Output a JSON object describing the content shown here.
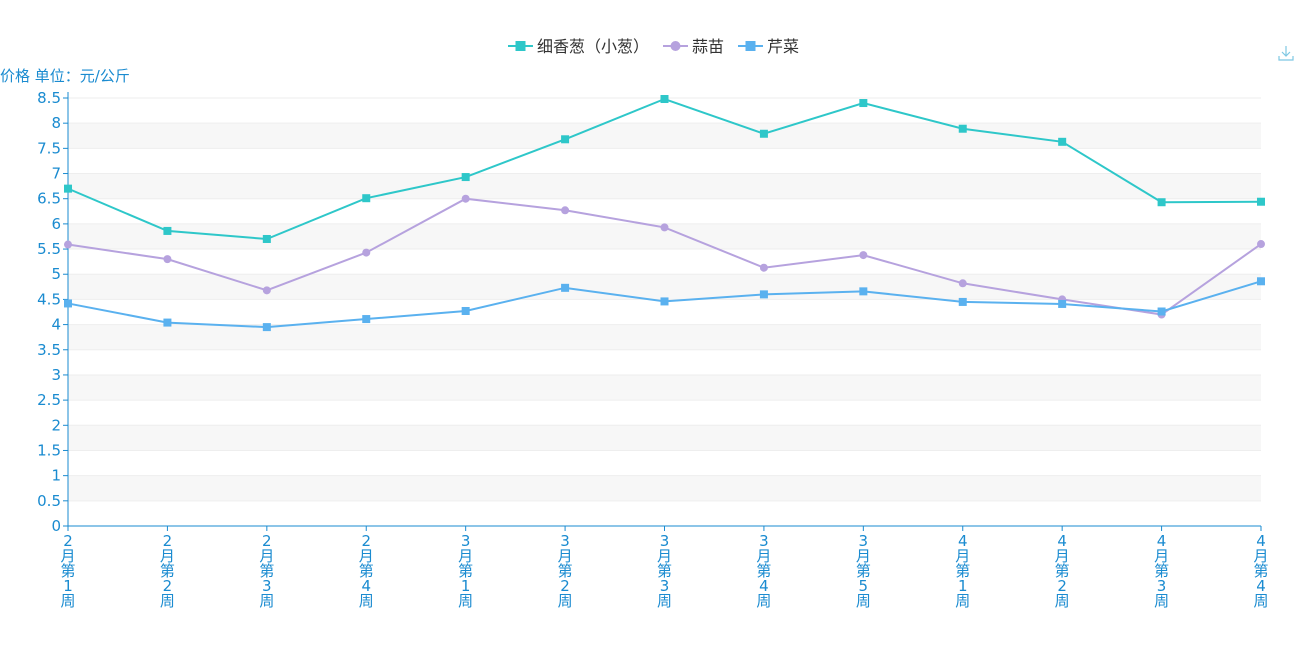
{
  "chart_data": {
    "type": "line",
    "ylabel": "价格 单位：元/公斤",
    "ylim": [
      0,
      8.5
    ],
    "y_ticks": [
      "0",
      "0.5",
      "1",
      "1.5",
      "2",
      "2.5",
      "3",
      "3.5",
      "4",
      "4.5",
      "5",
      "5.5",
      "6",
      "6.5",
      "7",
      "7.5",
      "8",
      "8.5"
    ],
    "categories": [
      "2月第1周",
      "2月第2周",
      "2月第3周",
      "2月第4周",
      "3月第1周",
      "3月第2周",
      "3月第3周",
      "3月第4周",
      "3月第5周",
      "4月第1周",
      "4月第2周",
      "4月第3周",
      "4月第4周"
    ],
    "series": [
      {
        "name": "细香葱（小葱）",
        "marker": "square",
        "color": "#2ec7c9",
        "values": [
          6.7,
          5.86,
          5.7,
          6.51,
          6.93,
          7.68,
          8.48,
          7.79,
          8.4,
          7.89,
          7.63,
          6.43,
          6.44
        ]
      },
      {
        "name": "蒜苗",
        "marker": "circle",
        "color": "#b6a2de",
        "values": [
          5.59,
          5.3,
          4.68,
          5.43,
          6.5,
          6.27,
          5.93,
          5.13,
          5.38,
          4.82,
          4.5,
          4.2,
          5.6
        ]
      },
      {
        "name": "芹菜",
        "marker": "square",
        "color": "#5ab1ef",
        "values": [
          4.42,
          4.04,
          3.95,
          4.11,
          4.27,
          4.73,
          4.46,
          4.6,
          4.66,
          4.45,
          4.41,
          4.26,
          4.86
        ]
      }
    ],
    "legend_position": "top-center",
    "grid": "alternating-bands"
  },
  "toolbar": {
    "download_icon": "download-icon"
  },
  "colors": {
    "axis": "#1a8bd0",
    "band": "#f7f7f7"
  }
}
